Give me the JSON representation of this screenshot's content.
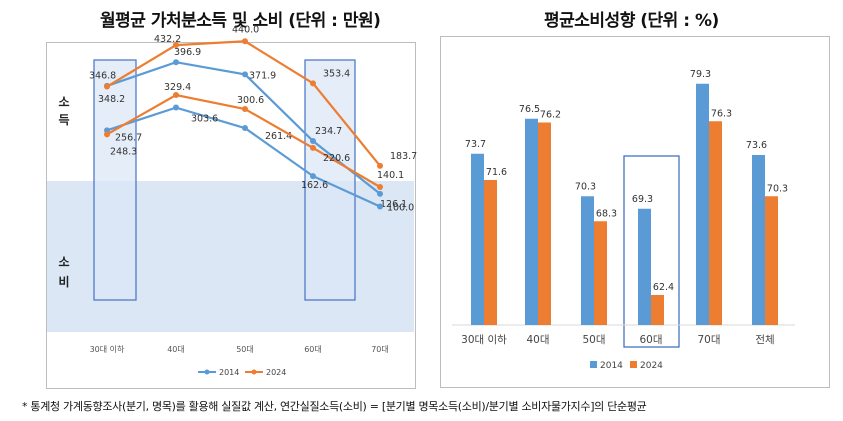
{
  "left_panel": {
    "title": "월평균 가처분소득 및 소비 (단위 : 만원)",
    "side_labels": {
      "income": [
        "소",
        "득"
      ],
      "consumption": [
        "소",
        "비"
      ]
    }
  },
  "right_panel": {
    "title": "평균소비성향 (단위 : %)"
  },
  "footnote": "* 통계청 가계동향조사(분기, 명목)를 활용해 실질값 계산, 연간실질소득(소비) = [분기별 명목소득(소비)/분기별 소비자물가지수]의 단순평균",
  "colors": {
    "series_2014": "#5b9bd5",
    "series_2024": "#ed7d31",
    "highlight_fill": "#dbe7f5",
    "highlight_border": "#4472c4"
  },
  "chart_data": [
    {
      "type": "line",
      "categories": [
        "30대 이하",
        "40대",
        "50대",
        "60대",
        "70대"
      ],
      "series": [
        {
          "name": "2014",
          "group": "income",
          "values": [
            348.2,
            396.9,
            371.9,
            234.7,
            126.1
          ]
        },
        {
          "name": "2024",
          "group": "income",
          "values": [
            346.8,
            432.2,
            440.0,
            353.4,
            183.7
          ]
        },
        {
          "name": "2014",
          "group": "consumption",
          "values": [
            256.7,
            303.6,
            261.4,
            162.6,
            100.0
          ]
        },
        {
          "name": "2024",
          "group": "consumption",
          "values": [
            248.3,
            329.4,
            300.6,
            220.6,
            140.1
          ]
        }
      ],
      "legend": [
        "2014",
        "2024"
      ],
      "legend_position": "bottom",
      "highlighted_categories": [
        "30대 이하",
        "60대"
      ],
      "grid": false
    },
    {
      "type": "bar",
      "categories": [
        "30대 이하",
        "40대",
        "50대",
        "60대",
        "70대",
        "전체"
      ],
      "series": [
        {
          "name": "2014",
          "values": [
            73.7,
            76.5,
            70.3,
            69.3,
            79.3,
            73.6
          ]
        },
        {
          "name": "2024",
          "values": [
            71.6,
            76.2,
            68.3,
            62.4,
            76.3,
            70.3
          ]
        }
      ],
      "legend": [
        "2014",
        "2024"
      ],
      "legend_position": "bottom",
      "highlighted_categories": [
        "60대"
      ],
      "grid": false
    }
  ]
}
